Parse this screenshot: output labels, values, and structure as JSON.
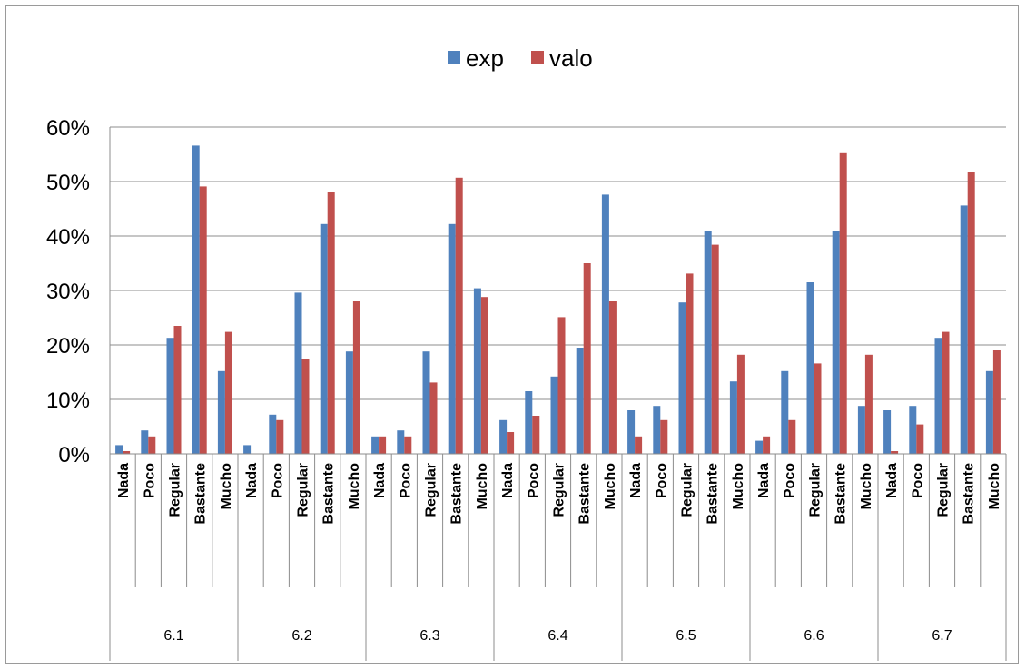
{
  "chart_data": {
    "type": "bar",
    "title": "",
    "xlabel": "",
    "ylabel": "",
    "ylim": [
      0,
      0.6
    ],
    "yticks": [
      0,
      0.1,
      0.2,
      0.3,
      0.4,
      0.5,
      0.6
    ],
    "ytick_labels": [
      "0%",
      "10%",
      "20%",
      "30%",
      "40%",
      "50%",
      "60%"
    ],
    "grid": true,
    "legend_position": "top-center",
    "groups": [
      "6.1",
      "6.2",
      "6.3",
      "6.4",
      "6.5",
      "6.6",
      "6.7"
    ],
    "subcategories": [
      "Nada",
      "Poco",
      "Regular",
      "Bastante",
      "Mucho"
    ],
    "series": [
      {
        "name": "exp",
        "color": "#4f81bd",
        "values": [
          0.016,
          0.043,
          0.213,
          0.566,
          0.152,
          0.016,
          0.072,
          0.296,
          0.422,
          0.188,
          0.032,
          0.043,
          0.188,
          0.422,
          0.304,
          0.062,
          0.115,
          0.142,
          0.195,
          0.476,
          0.08,
          0.088,
          0.278,
          0.41,
          0.133,
          0.024,
          0.152,
          0.315,
          0.41,
          0.088,
          0.08,
          0.088,
          0.213,
          0.456,
          0.152
        ]
      },
      {
        "name": "valo",
        "color": "#c0504d",
        "values": [
          0.005,
          0.032,
          0.235,
          0.491,
          0.224,
          0.0,
          0.062,
          0.174,
          0.48,
          0.28,
          0.032,
          0.032,
          0.131,
          0.507,
          0.288,
          0.04,
          0.07,
          0.251,
          0.35,
          0.28,
          0.032,
          0.062,
          0.331,
          0.384,
          0.182,
          0.032,
          0.062,
          0.166,
          0.552,
          0.182,
          0.005,
          0.054,
          0.224,
          0.518,
          0.19
        ]
      }
    ]
  }
}
